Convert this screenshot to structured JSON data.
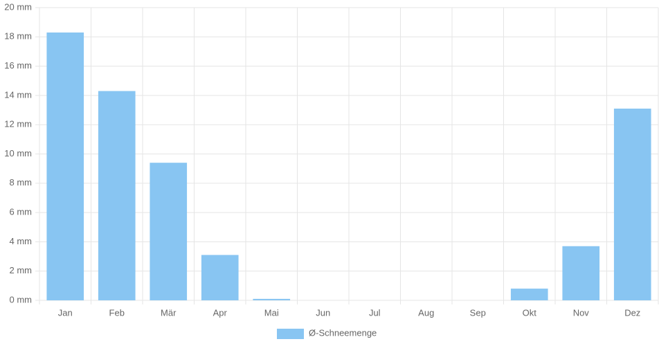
{
  "chart_data": {
    "type": "bar",
    "categories": [
      "Jan",
      "Feb",
      "Mär",
      "Apr",
      "Mai",
      "Jun",
      "Jul",
      "Aug",
      "Sep",
      "Okt",
      "Nov",
      "Dez"
    ],
    "series": [
      {
        "name": "Ø-Schneemenge",
        "color": "#88c5f2",
        "values": [
          18.3,
          14.3,
          9.4,
          3.1,
          0.1,
          0,
          0,
          0,
          0,
          0.8,
          3.7,
          13.1
        ]
      }
    ],
    "ylim": [
      0,
      20
    ],
    "yticks": [
      {
        "value": 0,
        "label": "0 mm"
      },
      {
        "value": 2,
        "label": "2 mm"
      },
      {
        "value": 4,
        "label": "4 mm"
      },
      {
        "value": 6,
        "label": "6 mm"
      },
      {
        "value": 8,
        "label": "8 mm"
      },
      {
        "value": 10,
        "label": "10 mm"
      },
      {
        "value": 12,
        "label": "12 mm"
      },
      {
        "value": 14,
        "label": "14 mm"
      },
      {
        "value": 16,
        "label": "16 mm"
      },
      {
        "value": 18,
        "label": "18 mm"
      },
      {
        "value": 20,
        "label": "20 mm"
      }
    ],
    "grid": true,
    "legend": "bottom"
  }
}
